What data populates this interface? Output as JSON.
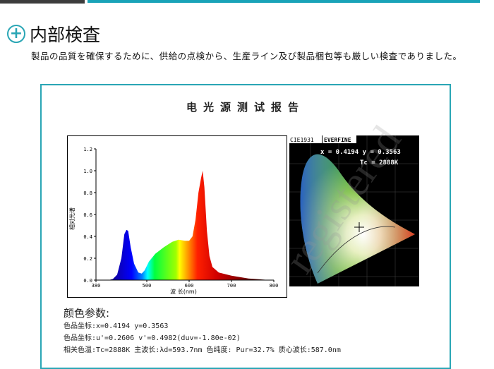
{
  "heading": {
    "title": "内部検査",
    "description": "製品の品質を確保するために、供給の点検から、生産ライン及び製品梱包等も厳しい検査でありました。"
  },
  "report": {
    "title": "电光源测试报告"
  },
  "colors": {
    "accent": "#19a3b8",
    "header_dark": "#3c3c3c"
  },
  "chart_data": {
    "type": "area",
    "xlabel": "波 长(nm)",
    "ylabel": "相对光谱",
    "xlim": [
      380,
      800
    ],
    "ylim": [
      0,
      1.2
    ],
    "xticks": [
      380,
      500,
      600,
      700,
      800
    ],
    "yticks": [
      0.0,
      0.2,
      0.4,
      0.6,
      0.8,
      1.0,
      1.2
    ],
    "x": [
      380,
      410,
      420,
      430,
      440,
      447,
      452,
      456,
      462,
      470,
      480,
      488,
      495,
      505,
      520,
      540,
      560,
      575,
      590,
      600,
      608,
      615,
      622,
      628,
      632,
      636,
      642,
      648,
      655,
      670,
      700,
      740,
      780,
      800
    ],
    "y": [
      0,
      0,
      0.01,
      0.05,
      0.2,
      0.42,
      0.46,
      0.45,
      0.3,
      0.15,
      0.07,
      0.06,
      0.09,
      0.17,
      0.24,
      0.3,
      0.35,
      0.37,
      0.36,
      0.36,
      0.4,
      0.55,
      0.8,
      0.93,
      1.0,
      0.85,
      0.45,
      0.22,
      0.12,
      0.07,
      0.04,
      0.015,
      0.003,
      0
    ]
  },
  "cie": {
    "label": "CIE1931",
    "brand": "EVERFINE",
    "xy_readout": "x = 0.4194 y = 0.3563",
    "tc_readout": "Tc = 2888K"
  },
  "params": {
    "title": "颜色参数:",
    "line1": "色品坐标:x=0.4194   y=0.3563",
    "line2": "色品坐标:u'=0.2606  v'=0.4982(duv=-1.80e-02)",
    "line3": "相关色温:Tc=2888K  主波长:λd=593.7nm  色纯度: Pur=32.7% 质心波长:587.0nm"
  },
  "watermark": "registered"
}
